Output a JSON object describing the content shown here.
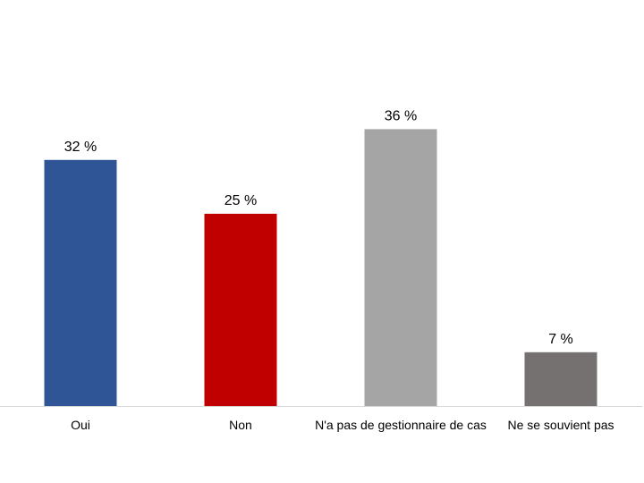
{
  "chart_data": {
    "type": "bar",
    "title": "",
    "xlabel": "",
    "ylabel": "",
    "categories": [
      "Oui",
      "Non",
      "N'a pas de gestionnaire de cas",
      "Ne se souvient pas"
    ],
    "values": [
      32,
      25,
      36,
      7
    ],
    "data_labels": [
      "32 %",
      "25 %",
      "36 %",
      "7 %"
    ],
    "colors": [
      "#2F5597",
      "#C00000",
      "#A5A5A5",
      "#767171"
    ],
    "ylim": [
      0,
      40
    ],
    "grid": false,
    "legend": "none"
  }
}
